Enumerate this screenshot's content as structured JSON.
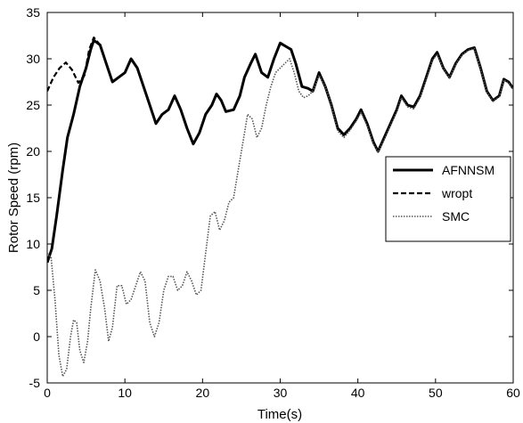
{
  "chart_data": {
    "type": "line",
    "title": "",
    "xlabel": "Time(s)",
    "ylabel": "Rotor Speed  (rpm)",
    "xlim": [
      0,
      60
    ],
    "ylim": [
      -5,
      35
    ],
    "xticks": [
      0,
      10,
      20,
      30,
      40,
      50,
      60
    ],
    "yticks": [
      -5,
      0,
      5,
      10,
      15,
      20,
      25,
      30,
      35
    ],
    "grid": false,
    "legend_position": "right",
    "series": [
      {
        "name": "AFNNSM",
        "style": "solid-thick",
        "color": "#000000",
        "points": [
          [
            0,
            8
          ],
          [
            0.6,
            9.5
          ],
          [
            1.2,
            13
          ],
          [
            2,
            18
          ],
          [
            2.6,
            21.5
          ],
          [
            3.4,
            24
          ],
          [
            4.2,
            27
          ],
          [
            5,
            29
          ],
          [
            5.6,
            31
          ],
          [
            6,
            32
          ],
          [
            6.8,
            31.5
          ],
          [
            7.6,
            29.5
          ],
          [
            8.4,
            27.5
          ],
          [
            9.2,
            28
          ],
          [
            10,
            28.5
          ],
          [
            10.8,
            30
          ],
          [
            11.6,
            29
          ],
          [
            12.4,
            27
          ],
          [
            13.2,
            25
          ],
          [
            14,
            23
          ],
          [
            14.8,
            24
          ],
          [
            15.6,
            24.5
          ],
          [
            16.4,
            26
          ],
          [
            17.2,
            24.5
          ],
          [
            18,
            22.5
          ],
          [
            18.8,
            20.8
          ],
          [
            19.6,
            22
          ],
          [
            20.4,
            24
          ],
          [
            21.2,
            25
          ],
          [
            21.8,
            26.2
          ],
          [
            22.4,
            25.5
          ],
          [
            23,
            24.3
          ],
          [
            24,
            24.5
          ],
          [
            24.8,
            26
          ],
          [
            25.4,
            28
          ],
          [
            26.2,
            29.5
          ],
          [
            26.8,
            30.5
          ],
          [
            27.6,
            28.5
          ],
          [
            28.4,
            28
          ],
          [
            29.2,
            30
          ],
          [
            30,
            31.7
          ],
          [
            30.8,
            31.3
          ],
          [
            31.4,
            31
          ],
          [
            32,
            29.5
          ],
          [
            32.8,
            27
          ],
          [
            33.6,
            26.8
          ],
          [
            34.2,
            26.5
          ],
          [
            35,
            28.5
          ],
          [
            35.8,
            27
          ],
          [
            36.6,
            25
          ],
          [
            37.4,
            22.5
          ],
          [
            38.2,
            21.8
          ],
          [
            39,
            22.5
          ],
          [
            39.8,
            23.5
          ],
          [
            40.4,
            24.5
          ],
          [
            41.2,
            23
          ],
          [
            42,
            21
          ],
          [
            42.6,
            20
          ],
          [
            43.4,
            21.5
          ],
          [
            44.2,
            23
          ],
          [
            45,
            24.5
          ],
          [
            45.6,
            26
          ],
          [
            46.4,
            25
          ],
          [
            47.2,
            24.8
          ],
          [
            48,
            26
          ],
          [
            48.8,
            28
          ],
          [
            49.6,
            30
          ],
          [
            50.2,
            30.7
          ],
          [
            51,
            29
          ],
          [
            51.8,
            28
          ],
          [
            52.6,
            29.5
          ],
          [
            53.4,
            30.5
          ],
          [
            54.2,
            31
          ],
          [
            55,
            31.2
          ],
          [
            55.8,
            29
          ],
          [
            56.6,
            26.5
          ],
          [
            57.4,
            25.5
          ],
          [
            58.2,
            26
          ],
          [
            58.8,
            27.8
          ],
          [
            59.4,
            27.5
          ],
          [
            60,
            26.8
          ]
        ]
      },
      {
        "name": "wropt",
        "style": "dashed",
        "color": "#000000",
        "points": [
          [
            0,
            26.5
          ],
          [
            0.8,
            28
          ],
          [
            1.6,
            29
          ],
          [
            2.4,
            29.6
          ],
          [
            3.2,
            28.8
          ],
          [
            4,
            27.4
          ],
          [
            4.8,
            28.2
          ],
          [
            5.4,
            31
          ],
          [
            6,
            32.3
          ],
          [
            6.8,
            31.5
          ],
          [
            7.6,
            29.5
          ],
          [
            8.4,
            27.5
          ],
          [
            9.2,
            28
          ],
          [
            10,
            28.5
          ],
          [
            10.8,
            30
          ],
          [
            11.6,
            29
          ],
          [
            12.4,
            27
          ],
          [
            13.2,
            25
          ],
          [
            14,
            23
          ],
          [
            14.8,
            24
          ],
          [
            15.6,
            24.5
          ],
          [
            16.4,
            26
          ],
          [
            17.2,
            24.5
          ],
          [
            18,
            22.5
          ],
          [
            18.8,
            20.8
          ],
          [
            19.6,
            22
          ],
          [
            20.4,
            24
          ],
          [
            21.2,
            25
          ],
          [
            21.8,
            26.2
          ],
          [
            22.4,
            25.5
          ],
          [
            23,
            24.3
          ],
          [
            24,
            24.5
          ],
          [
            24.8,
            26
          ],
          [
            25.4,
            28
          ],
          [
            26.2,
            29.5
          ],
          [
            26.8,
            30.5
          ],
          [
            27.6,
            28.5
          ],
          [
            28.4,
            28
          ],
          [
            29.2,
            30
          ],
          [
            30,
            31.7
          ],
          [
            30.8,
            31.3
          ],
          [
            31.4,
            31
          ],
          [
            32,
            29.5
          ],
          [
            32.8,
            27
          ],
          [
            33.6,
            26.8
          ],
          [
            34.2,
            26.5
          ],
          [
            35,
            28.5
          ],
          [
            35.8,
            27
          ],
          [
            36.6,
            25
          ],
          [
            37.4,
            22.5
          ],
          [
            38.2,
            21.8
          ],
          [
            39,
            22.5
          ],
          [
            39.8,
            23.5
          ],
          [
            40.4,
            24.5
          ],
          [
            41.2,
            23
          ],
          [
            42,
            21
          ],
          [
            42.6,
            20
          ],
          [
            43.4,
            21.5
          ],
          [
            44.2,
            23
          ],
          [
            45,
            24.5
          ],
          [
            45.6,
            26
          ],
          [
            46.4,
            25
          ],
          [
            47.2,
            24.8
          ],
          [
            48,
            26
          ],
          [
            48.8,
            28
          ],
          [
            49.6,
            30
          ],
          [
            50.2,
            30.7
          ],
          [
            51,
            29
          ],
          [
            51.8,
            28
          ],
          [
            52.6,
            29.5
          ],
          [
            53.4,
            30.5
          ],
          [
            54.2,
            31
          ],
          [
            55,
            31.2
          ],
          [
            55.8,
            29
          ],
          [
            56.6,
            26.5
          ],
          [
            57.4,
            25.5
          ],
          [
            58.2,
            26
          ],
          [
            58.8,
            27.8
          ],
          [
            59.4,
            27.5
          ],
          [
            60,
            26.8
          ]
        ]
      },
      {
        "name": "SMC",
        "style": "dotted",
        "color": "#555555",
        "points": [
          [
            0,
            9
          ],
          [
            0.5,
            8.5
          ],
          [
            1,
            4
          ],
          [
            1.5,
            -2
          ],
          [
            2,
            -4.3
          ],
          [
            2.5,
            -3.5
          ],
          [
            3,
            0
          ],
          [
            3.4,
            1.8
          ],
          [
            3.8,
            1.5
          ],
          [
            4.2,
            -1.5
          ],
          [
            4.7,
            -2.8
          ],
          [
            5.2,
            -0.5
          ],
          [
            5.6,
            3
          ],
          [
            6.2,
            7.2
          ],
          [
            6.8,
            6
          ],
          [
            7.4,
            3
          ],
          [
            7.9,
            -0.5
          ],
          [
            8.4,
            1
          ],
          [
            9,
            5.5
          ],
          [
            9.6,
            5.5
          ],
          [
            10.2,
            3.5
          ],
          [
            10.8,
            4
          ],
          [
            11.4,
            5.5
          ],
          [
            12,
            7
          ],
          [
            12.6,
            6
          ],
          [
            13.2,
            1.5
          ],
          [
            13.8,
            0
          ],
          [
            14.4,
            1.5
          ],
          [
            15,
            5
          ],
          [
            15.6,
            6.5
          ],
          [
            16.2,
            6.5
          ],
          [
            16.8,
            5
          ],
          [
            17.4,
            5.5
          ],
          [
            18,
            7
          ],
          [
            18.6,
            6
          ],
          [
            19.2,
            4.5
          ],
          [
            19.8,
            5
          ],
          [
            20.4,
            9
          ],
          [
            21,
            13
          ],
          [
            21.6,
            13.5
          ],
          [
            22.2,
            11.5
          ],
          [
            22.8,
            12.5
          ],
          [
            23.4,
            14.5
          ],
          [
            24,
            15
          ],
          [
            24.6,
            18
          ],
          [
            25.2,
            21
          ],
          [
            25.8,
            24
          ],
          [
            26.4,
            23.5
          ],
          [
            27,
            21.5
          ],
          [
            27.6,
            22.5
          ],
          [
            28.2,
            25
          ],
          [
            28.8,
            27
          ],
          [
            29.4,
            28.5
          ],
          [
            30,
            29
          ],
          [
            30.6,
            29.5
          ],
          [
            31.2,
            30
          ],
          [
            31.8,
            28.5
          ],
          [
            32.4,
            26.5
          ],
          [
            33,
            25.8
          ],
          [
            33.6,
            26
          ],
          [
            34.2,
            26.5
          ],
          [
            35,
            28.2
          ],
          [
            35.8,
            27
          ],
          [
            36.6,
            25
          ],
          [
            37.4,
            22.2
          ],
          [
            38.2,
            21.5
          ],
          [
            39,
            22.3
          ],
          [
            39.8,
            23.3
          ],
          [
            40.4,
            24.2
          ],
          [
            41.2,
            22.8
          ],
          [
            42,
            20.8
          ],
          [
            42.6,
            19.9
          ],
          [
            43.4,
            21.3
          ],
          [
            44.2,
            22.8
          ],
          [
            45,
            24.3
          ],
          [
            45.6,
            25.8
          ],
          [
            46.4,
            24.8
          ],
          [
            47.2,
            24.6
          ],
          [
            48,
            25.8
          ],
          [
            48.8,
            27.8
          ],
          [
            49.6,
            29.8
          ],
          [
            50.2,
            30.5
          ],
          [
            51,
            28.9
          ],
          [
            51.8,
            27.9
          ],
          [
            52.6,
            29.4
          ],
          [
            53.4,
            30.4
          ],
          [
            54.2,
            30.9
          ],
          [
            55,
            31.1
          ],
          [
            55.8,
            28.9
          ],
          [
            56.6,
            26.4
          ],
          [
            57.4,
            25.4
          ],
          [
            58.2,
            25.9
          ],
          [
            58.8,
            27.7
          ],
          [
            59.4,
            27.4
          ],
          [
            60,
            26.7
          ]
        ]
      }
    ]
  }
}
